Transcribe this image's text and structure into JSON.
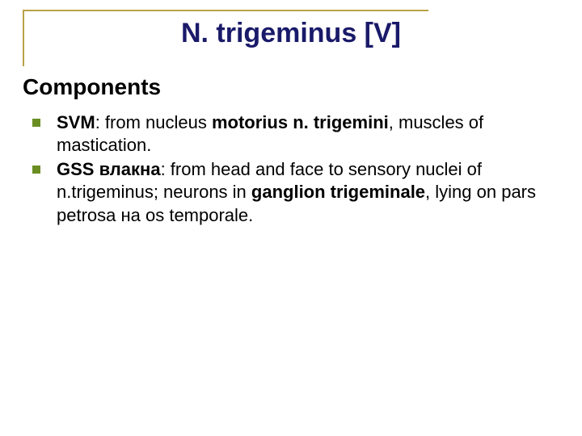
{
  "colors": {
    "frame": "#b9a24a",
    "title": "#1a1a6a",
    "bullet": "#6b8e23",
    "text": "#000000",
    "background": "#ffffff"
  },
  "typography": {
    "title_fontsize": 34,
    "subtitle_fontsize": 28,
    "body_fontsize": 22,
    "font_family": "Verdana"
  },
  "title": "N. trigeminus [V]",
  "subtitle": "Components",
  "bullets": [
    {
      "runs": [
        {
          "text": "SVM",
          "bold": true
        },
        {
          "text": ": from nucleus ",
          "bold": false
        },
        {
          "text": "motorius n. trigemini",
          "bold": true
        },
        {
          "text": ", muscles of mastication.",
          "bold": false
        }
      ]
    },
    {
      "runs": [
        {
          "text": "GSS влакна",
          "bold": true
        },
        {
          "text": ": from head and face to sensory nuclei of n.trigeminus; neurons in ",
          "bold": false
        },
        {
          "text": "ganglion trigeminale",
          "bold": true
        },
        {
          "text": ", lying on pars petrosa на os temporale.",
          "bold": false
        }
      ]
    }
  ]
}
